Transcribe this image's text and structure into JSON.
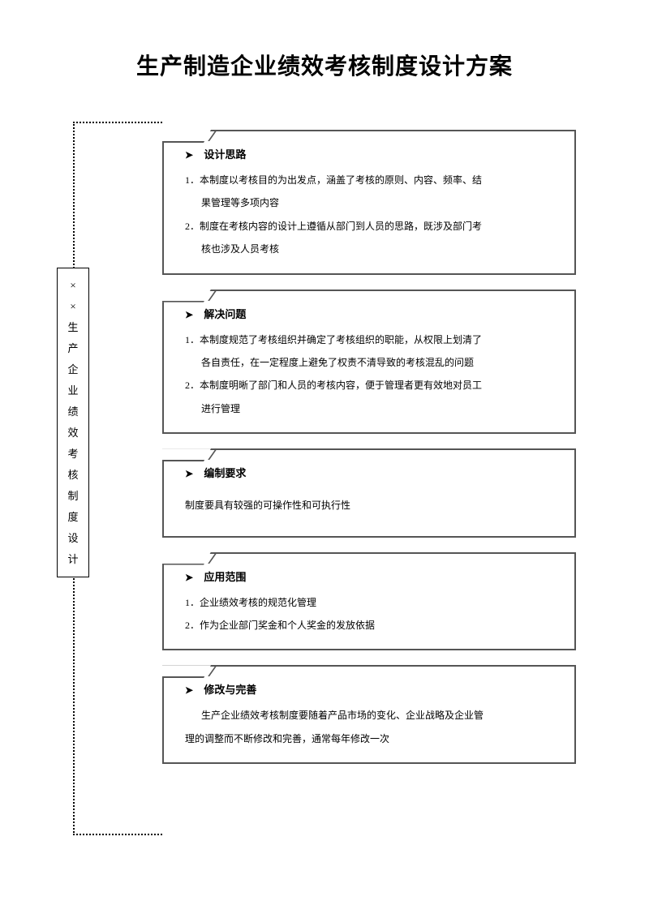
{
  "title": "生产制造企业绩效考核制度设计方案",
  "verticalLabel": [
    "×",
    "×",
    "生",
    "产",
    "企",
    "业",
    "绩",
    "效",
    "考",
    "核",
    "制",
    "度",
    "设",
    "计"
  ],
  "colors": {
    "text": "#000000",
    "border": "#555555",
    "dotted": "#000000",
    "background": "#ffffff"
  },
  "sections": [
    {
      "heading": "设计思路",
      "items": [
        "1．本制度以考核目的为出发点，涵盖了考核的原则、内容、频率、结",
        "果管理等多项内容",
        "2．制度在考核内容的设计上遵循从部门到人员的思路，既涉及部门考",
        "核也涉及人员考核"
      ],
      "indents": [
        false,
        true,
        false,
        true
      ]
    },
    {
      "heading": "解决问题",
      "items": [
        "1．本制度规范了考核组织并确定了考核组织的职能，从权限上划清了",
        "各自责任，在一定程度上避免了权责不清导致的考核混乱的问题",
        "2．本制度明晰了部门和人员的考核内容，便于管理者更有效地对员工",
        "进行管理"
      ],
      "indents": [
        false,
        true,
        false,
        true
      ]
    },
    {
      "heading": "编制要求",
      "items": [
        "制度要具有较强的可操作性和可执行性"
      ],
      "indents": [
        false
      ]
    },
    {
      "heading": "应用范围",
      "items": [
        "1．企业绩效考核的规范化管理",
        "2．作为企业部门奖金和个人奖金的发放依据"
      ],
      "indents": [
        false,
        false
      ]
    },
    {
      "heading": "修改与完善",
      "items": [
        "生产企业绩效考核制度要随着产品市场的变化、企业战略及企业管",
        "理的调整而不断修改和完善，通常每年修改一次"
      ],
      "indents": [
        true,
        false
      ]
    }
  ]
}
